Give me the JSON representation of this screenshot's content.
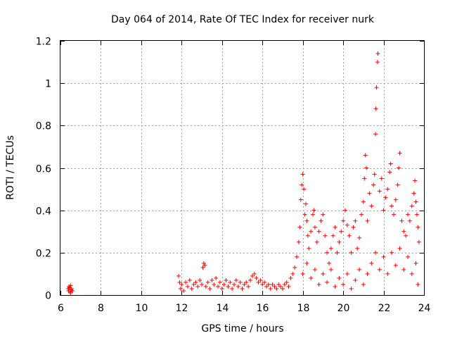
{
  "chart_data": {
    "type": "scatter",
    "title": "Day 064 of 2014, Rate Of TEC Index for receiver nurk",
    "xlabel": "GPS time / hours",
    "ylabel": "ROTI / TECUs",
    "xlim": [
      6,
      24
    ],
    "ylim": [
      0,
      1.2
    ],
    "xticks": [
      6,
      8,
      10,
      12,
      14,
      16,
      18,
      20,
      22,
      24
    ],
    "yticks": [
      0,
      0.2,
      0.4,
      0.6,
      0.8,
      1,
      1.2
    ],
    "xtick_labels": [
      "6",
      "8",
      "10",
      "12",
      "14",
      "16",
      "18",
      "20",
      "22",
      "24"
    ],
    "ytick_labels": [
      "0",
      "0.2",
      "0.4",
      "0.6",
      "0.8",
      "1",
      "1.2"
    ],
    "grid": true,
    "marker": "+",
    "color": "#ff0000",
    "series": [
      {
        "name": "ROTI",
        "points": [
          [
            6.4,
            0.02
          ],
          [
            6.45,
            0.035
          ],
          [
            6.5,
            0.01
          ],
          [
            6.55,
            0.03
          ],
          [
            6.42,
            0.04
          ],
          [
            6.48,
            0.015
          ],
          [
            6.52,
            0.025
          ],
          [
            6.6,
            0.02
          ],
          [
            6.38,
            0.03
          ],
          [
            6.5,
            0.045
          ],
          [
            11.85,
            0.09
          ],
          [
            11.9,
            0.06
          ],
          [
            11.95,
            0.03
          ],
          [
            12.0,
            0.05
          ],
          [
            12.1,
            0.02
          ],
          [
            12.2,
            0.06
          ],
          [
            12.3,
            0.04
          ],
          [
            12.4,
            0.07
          ],
          [
            12.5,
            0.03
          ],
          [
            12.6,
            0.05
          ],
          [
            12.7,
            0.06
          ],
          [
            12.8,
            0.04
          ],
          [
            12.9,
            0.07
          ],
          [
            13.0,
            0.05
          ],
          [
            13.05,
            0.13
          ],
          [
            13.1,
            0.15
          ],
          [
            13.15,
            0.14
          ],
          [
            13.2,
            0.04
          ],
          [
            13.3,
            0.06
          ],
          [
            13.4,
            0.03
          ],
          [
            13.5,
            0.07
          ],
          [
            13.6,
            0.05
          ],
          [
            13.7,
            0.08
          ],
          [
            13.8,
            0.04
          ],
          [
            13.9,
            0.06
          ],
          [
            14.0,
            0.03
          ],
          [
            14.1,
            0.05
          ],
          [
            14.2,
            0.07
          ],
          [
            14.3,
            0.04
          ],
          [
            14.4,
            0.06
          ],
          [
            14.5,
            0.03
          ],
          [
            14.6,
            0.05
          ],
          [
            14.7,
            0.07
          ],
          [
            14.8,
            0.04
          ],
          [
            14.9,
            0.06
          ],
          [
            15.0,
            0.03
          ],
          [
            15.1,
            0.05
          ],
          [
            15.2,
            0.06
          ],
          [
            15.3,
            0.04
          ],
          [
            15.4,
            0.07
          ],
          [
            15.5,
            0.09
          ],
          [
            15.6,
            0.1
          ],
          [
            15.7,
            0.08
          ],
          [
            15.8,
            0.06
          ],
          [
            15.9,
            0.07
          ],
          [
            16.0,
            0.05
          ],
          [
            16.1,
            0.06
          ],
          [
            16.2,
            0.04
          ],
          [
            16.3,
            0.05
          ],
          [
            16.4,
            0.03
          ],
          [
            16.5,
            0.05
          ],
          [
            16.6,
            0.04
          ],
          [
            16.7,
            0.03
          ],
          [
            16.8,
            0.05
          ],
          [
            16.9,
            0.04
          ],
          [
            17.0,
            0.03
          ],
          [
            17.1,
            0.05
          ],
          [
            17.2,
            0.06
          ],
          [
            17.3,
            0.04
          ],
          [
            17.4,
            0.08
          ],
          [
            17.5,
            0.1
          ],
          [
            17.6,
            0.13
          ],
          [
            17.7,
            0.18
          ],
          [
            17.8,
            0.25
          ],
          [
            17.85,
            0.32
          ],
          [
            17.9,
            0.45
          ],
          [
            17.95,
            0.52
          ],
          [
            18.0,
            0.57
          ],
          [
            18.05,
            0.5
          ],
          [
            18.1,
            0.38
          ],
          [
            18.15,
            0.43
          ],
          [
            18.2,
            0.35
          ],
          [
            18.25,
            0.28
          ],
          [
            18.3,
            0.22
          ],
          [
            18.4,
            0.3
          ],
          [
            18.5,
            0.38
          ],
          [
            18.55,
            0.4
          ],
          [
            18.6,
            0.32
          ],
          [
            18.7,
            0.25
          ],
          [
            18.8,
            0.3
          ],
          [
            18.9,
            0.35
          ],
          [
            19.0,
            0.38
          ],
          [
            19.1,
            0.28
          ],
          [
            19.2,
            0.2
          ],
          [
            19.3,
            0.15
          ],
          [
            19.4,
            0.22
          ],
          [
            19.5,
            0.28
          ],
          [
            19.6,
            0.32
          ],
          [
            19.7,
            0.2
          ],
          [
            19.8,
            0.25
          ],
          [
            19.9,
            0.3
          ],
          [
            20.0,
            0.35
          ],
          [
            20.1,
            0.4
          ],
          [
            20.2,
            0.33
          ],
          [
            20.3,
            0.28
          ],
          [
            20.4,
            0.2
          ],
          [
            20.5,
            0.32
          ],
          [
            20.6,
            0.35
          ],
          [
            20.7,
            0.22
          ],
          [
            20.8,
            0.27
          ],
          [
            20.9,
            0.38
          ],
          [
            21.0,
            0.44
          ],
          [
            21.05,
            0.55
          ],
          [
            21.1,
            0.66
          ],
          [
            21.15,
            0.6
          ],
          [
            21.2,
            0.35
          ],
          [
            21.3,
            0.48
          ],
          [
            21.4,
            0.42
          ],
          [
            21.5,
            0.52
          ],
          [
            21.55,
            0.57
          ],
          [
            21.6,
            0.76
          ],
          [
            21.62,
            0.88
          ],
          [
            21.65,
            0.98
          ],
          [
            21.7,
            1.1
          ],
          [
            21.72,
            1.14
          ],
          [
            21.8,
            0.49
          ],
          [
            21.9,
            0.55
          ],
          [
            22.0,
            0.4
          ],
          [
            22.1,
            0.46
          ],
          [
            22.2,
            0.5
          ],
          [
            22.3,
            0.58
          ],
          [
            22.35,
            0.62
          ],
          [
            22.4,
            0.42
          ],
          [
            22.5,
            0.38
          ],
          [
            22.6,
            0.45
          ],
          [
            22.7,
            0.52
          ],
          [
            22.75,
            0.6
          ],
          [
            22.8,
            0.67
          ],
          [
            22.9,
            0.35
          ],
          [
            23.0,
            0.3
          ],
          [
            23.1,
            0.28
          ],
          [
            23.2,
            0.38
          ],
          [
            23.3,
            0.35
          ],
          [
            23.4,
            0.42
          ],
          [
            23.5,
            0.48
          ],
          [
            23.55,
            0.54
          ],
          [
            23.6,
            0.44
          ],
          [
            23.65,
            0.38
          ],
          [
            23.7,
            0.32
          ],
          [
            23.75,
            0.25
          ],
          [
            18.0,
            0.1
          ],
          [
            18.2,
            0.15
          ],
          [
            18.4,
            0.08
          ],
          [
            18.6,
            0.12
          ],
          [
            18.8,
            0.05
          ],
          [
            19.0,
            0.1
          ],
          [
            19.2,
            0.06
          ],
          [
            19.4,
            0.12
          ],
          [
            19.6,
            0.04
          ],
          [
            19.8,
            0.08
          ],
          [
            20.0,
            0.05
          ],
          [
            20.2,
            0.1
          ],
          [
            20.4,
            0.03
          ],
          [
            20.6,
            0.07
          ],
          [
            20.8,
            0.12
          ],
          [
            21.0,
            0.05
          ],
          [
            21.2,
            0.1
          ],
          [
            21.4,
            0.15
          ],
          [
            21.6,
            0.2
          ],
          [
            21.8,
            0.12
          ],
          [
            22.0,
            0.18
          ],
          [
            22.2,
            0.1
          ],
          [
            22.4,
            0.2
          ],
          [
            22.6,
            0.14
          ],
          [
            22.8,
            0.22
          ],
          [
            23.0,
            0.12
          ],
          [
            23.2,
            0.18
          ],
          [
            23.4,
            0.1
          ],
          [
            23.6,
            0.15
          ],
          [
            23.7,
            0.05
          ]
        ]
      }
    ]
  }
}
